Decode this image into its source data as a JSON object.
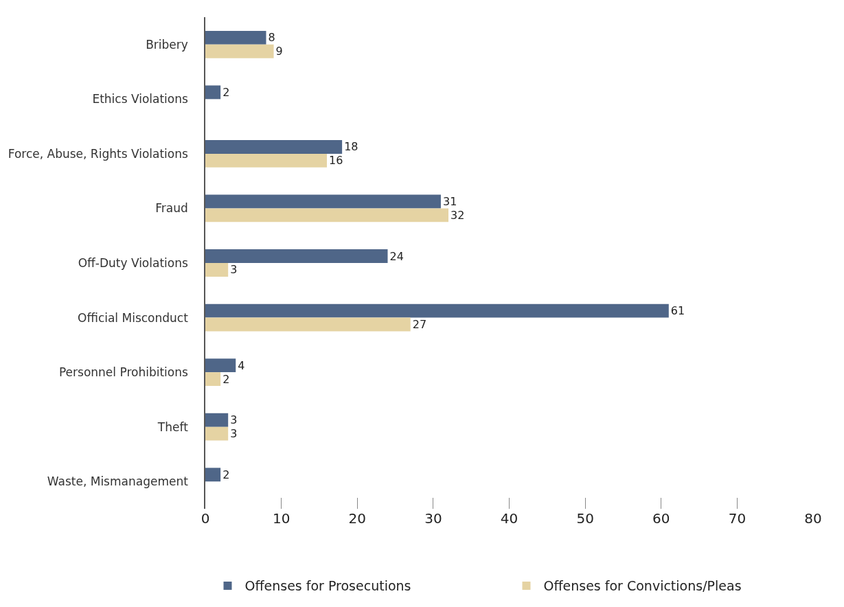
{
  "chart_data": {
    "type": "bar",
    "orientation": "horizontal",
    "categories": [
      "Bribery",
      "Ethics Violations",
      "Force, Abuse, Rights Violations",
      "Fraud",
      "Off-Duty Violations",
      "Official Misconduct",
      "Personnel Prohibitions",
      "Theft",
      "Waste, Mismanagement"
    ],
    "series": [
      {
        "name": "Offenses for Prosecutions",
        "color": "#4f6688",
        "values": [
          8,
          2,
          18,
          31,
          24,
          61,
          4,
          3,
          2
        ]
      },
      {
        "name": "Offenses for Convictions/Pleas",
        "color": "#e5d3a3",
        "values": [
          9,
          null,
          16,
          32,
          3,
          27,
          2,
          3,
          null
        ]
      }
    ],
    "xlim": [
      0,
      80
    ],
    "xticks": [
      0,
      10,
      20,
      30,
      40,
      50,
      60,
      70,
      80
    ],
    "legend": "bottom",
    "data_labels": true
  }
}
